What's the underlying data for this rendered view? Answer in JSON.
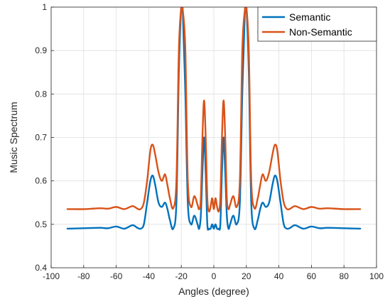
{
  "chart_data": {
    "type": "line",
    "xlabel": "Angles (degree)",
    "ylabel": "Music Spectrum",
    "xlim": [
      -100,
      100
    ],
    "ylim": [
      0.4,
      1
    ],
    "xticks": [
      "-100",
      "-80",
      "-60",
      "-40",
      "-20",
      "0",
      "20",
      "40",
      "60",
      "80",
      "100"
    ],
    "yticks": [
      "0.4",
      "0.5",
      "0.6",
      "0.7",
      "0.8",
      "0.9",
      "1"
    ],
    "grid": true,
    "legend_position": "top-right",
    "series": [
      {
        "name": "Semantic",
        "color": "#0072BD",
        "x": [
          -90,
          -80,
          -70,
          -65,
          -60,
          -55,
          -50,
          -47,
          -45,
          -43,
          -41,
          -39,
          -37.5,
          -36,
          -34,
          -32,
          -30,
          -28.5,
          -27,
          -25,
          -23,
          -21.5,
          -20,
          -19,
          -17.5,
          -16,
          -14,
          -12,
          -10,
          -9,
          -8,
          -7,
          -6,
          -5,
          -4,
          -3,
          -2,
          -1,
          0,
          1,
          2,
          3,
          4,
          5,
          6,
          7,
          8,
          9,
          10,
          12,
          14,
          16,
          17.5,
          19,
          20,
          21.5,
          23,
          25,
          27,
          28.5,
          30,
          32,
          34,
          36,
          37.5,
          39,
          41,
          43,
          45,
          47,
          50,
          55,
          60,
          65,
          70,
          80,
          90
        ],
        "y": [
          0.49,
          0.491,
          0.492,
          0.491,
          0.495,
          0.49,
          0.498,
          0.492,
          0.49,
          0.5,
          0.55,
          0.6,
          0.612,
          0.59,
          0.55,
          0.54,
          0.55,
          0.535,
          0.51,
          0.49,
          0.55,
          0.85,
          1.0,
          0.98,
          0.8,
          0.55,
          0.5,
          0.52,
          0.5,
          0.49,
          0.52,
          0.62,
          0.7,
          0.62,
          0.5,
          0.49,
          0.49,
          0.5,
          0.49,
          0.5,
          0.49,
          0.49,
          0.5,
          0.62,
          0.7,
          0.62,
          0.52,
          0.49,
          0.5,
          0.52,
          0.5,
          0.55,
          0.8,
          0.98,
          1.0,
          0.85,
          0.55,
          0.49,
          0.51,
          0.535,
          0.55,
          0.54,
          0.55,
          0.59,
          0.612,
          0.6,
          0.55,
          0.5,
          0.49,
          0.492,
          0.498,
          0.49,
          0.495,
          0.491,
          0.492,
          0.491,
          0.49
        ]
      },
      {
        "name": "Non-Semantic",
        "color": "#D95319",
        "x": [
          -90,
          -80,
          -70,
          -65,
          -60,
          -55,
          -50,
          -47,
          -45,
          -43,
          -41,
          -39,
          -37.5,
          -36,
          -34,
          -32,
          -30,
          -28.5,
          -27,
          -25,
          -23,
          -21.5,
          -20,
          -19,
          -17.5,
          -16,
          -14,
          -12,
          -10,
          -9,
          -8,
          -7,
          -6,
          -5,
          -4,
          -3,
          -2,
          -1,
          0,
          1,
          2,
          3,
          4,
          5,
          6,
          7,
          8,
          9,
          10,
          12,
          14,
          16,
          17.5,
          19,
          20,
          21.5,
          23,
          25,
          27,
          28.5,
          30,
          32,
          34,
          36,
          37.5,
          39,
          41,
          43,
          45,
          47,
          50,
          55,
          60,
          65,
          70,
          80,
          90
        ],
        "y": [
          0.535,
          0.535,
          0.537,
          0.536,
          0.54,
          0.535,
          0.542,
          0.536,
          0.535,
          0.55,
          0.6,
          0.67,
          0.683,
          0.66,
          0.62,
          0.6,
          0.615,
          0.59,
          0.56,
          0.537,
          0.6,
          0.9,
          1.0,
          0.99,
          0.9,
          0.6,
          0.54,
          0.565,
          0.545,
          0.535,
          0.56,
          0.7,
          0.785,
          0.7,
          0.56,
          0.53,
          0.54,
          0.56,
          0.535,
          0.56,
          0.54,
          0.53,
          0.56,
          0.7,
          0.785,
          0.7,
          0.56,
          0.535,
          0.545,
          0.565,
          0.54,
          0.6,
          0.9,
          0.99,
          1.0,
          0.9,
          0.6,
          0.537,
          0.56,
          0.59,
          0.615,
          0.6,
          0.62,
          0.66,
          0.683,
          0.67,
          0.6,
          0.55,
          0.535,
          0.536,
          0.542,
          0.535,
          0.54,
          0.536,
          0.537,
          0.535,
          0.535
        ]
      }
    ]
  }
}
